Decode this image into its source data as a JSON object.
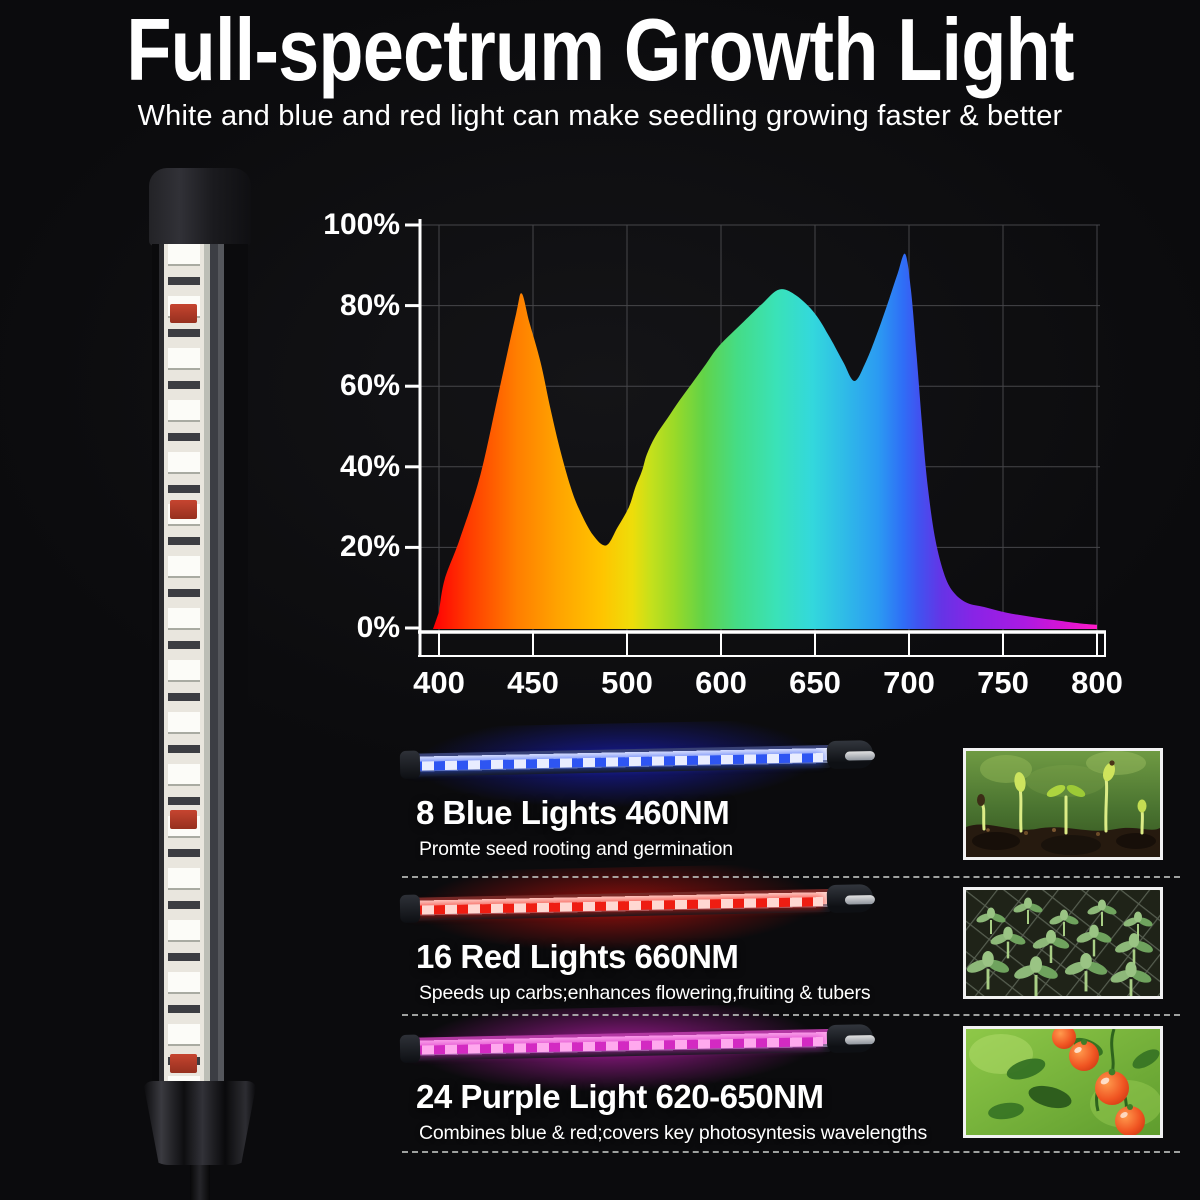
{
  "page": {
    "background_color": "#0b0b0d",
    "text_color": "#ffffff"
  },
  "header": {
    "title": "Full-spectrum Growth Light",
    "subtitle": "White and blue and red light can make seedling growing faster & better"
  },
  "chart_data": {
    "type": "area",
    "title": "",
    "xlabel": "",
    "ylabel": "",
    "x_tick_labels": [
      "400",
      "450",
      "500",
      "600",
      "650",
      "700",
      "750",
      "800"
    ],
    "y_tick_labels": [
      "100%",
      "80%",
      "60%",
      "40%",
      "20%",
      "0%"
    ],
    "ylim": [
      0,
      100
    ],
    "grid": true,
    "points": [
      [
        400,
        4
      ],
      [
        403,
        12
      ],
      [
        411,
        22
      ],
      [
        422,
        38
      ],
      [
        432,
        59
      ],
      [
        441,
        78
      ],
      [
        444,
        83
      ],
      [
        448,
        76
      ],
      [
        454,
        66
      ],
      [
        459,
        55
      ],
      [
        464,
        45
      ],
      [
        470,
        35
      ],
      [
        475,
        29
      ],
      [
        482,
        23
      ],
      [
        489,
        20.5
      ],
      [
        495,
        25
      ],
      [
        502,
        30
      ],
      [
        509,
        35
      ],
      [
        516,
        39
      ],
      [
        521,
        43
      ],
      [
        530,
        47.5
      ],
      [
        543,
        52
      ],
      [
        556,
        56.5
      ],
      [
        570,
        61
      ],
      [
        584,
        65.5
      ],
      [
        598,
        70
      ],
      [
        612,
        76
      ],
      [
        622,
        80.5
      ],
      [
        631,
        84
      ],
      [
        640,
        82.5
      ],
      [
        650,
        78
      ],
      [
        658,
        72
      ],
      [
        665,
        66
      ],
      [
        671,
        61.3
      ],
      [
        677,
        66
      ],
      [
        683,
        73
      ],
      [
        689,
        81
      ],
      [
        694,
        88
      ],
      [
        698,
        92.8
      ],
      [
        701,
        84
      ],
      [
        704,
        68
      ],
      [
        707,
        50
      ],
      [
        710,
        35
      ],
      [
        714,
        22
      ],
      [
        719,
        13
      ],
      [
        724,
        8.7
      ],
      [
        731,
        6.2
      ],
      [
        740,
        5.2
      ],
      [
        752,
        3.8
      ],
      [
        766,
        2.7
      ],
      [
        780,
        1.8
      ],
      [
        792,
        1.1
      ],
      [
        800,
        0.8
      ]
    ],
    "gradient_stops": [
      [
        0,
        "#ff0004"
      ],
      [
        0.056,
        "#ff3d00"
      ],
      [
        0.126,
        "#ff7e00"
      ],
      [
        0.188,
        "#ffa300"
      ],
      [
        0.254,
        "#ffc400"
      ],
      [
        0.3,
        "#eedd0a"
      ],
      [
        0.329,
        "#c4e01c"
      ],
      [
        0.366,
        "#97d929"
      ],
      [
        0.407,
        "#62d348"
      ],
      [
        0.457,
        "#45dc85"
      ],
      [
        0.517,
        "#3ae2b8"
      ],
      [
        0.571,
        "#33d8dc"
      ],
      [
        0.623,
        "#2fb9e8"
      ],
      [
        0.671,
        "#2b9af2"
      ],
      [
        0.708,
        "#2f6ef6"
      ],
      [
        0.731,
        "#4053f0"
      ],
      [
        0.766,
        "#6534e6"
      ],
      [
        0.814,
        "#8824e6"
      ],
      [
        0.891,
        "#ab1ae2"
      ],
      [
        0.949,
        "#d714d4"
      ],
      [
        1,
        "#ff1cc8"
      ]
    ]
  },
  "sections": [
    {
      "heading": "8 Blue Lights 460NM",
      "description": "Promte seed rooting and germination",
      "led_color": "#2e55f2",
      "strip_color": "#e9edff",
      "edge_color": "#39406e",
      "glow_color": "rgba(28,34,228,0.62)"
    },
    {
      "heading": "16 Red Lights 660NM",
      "description": "Speeds up carbs;enhances flowering,fruiting & tubers",
      "led_color": "#ee1d12",
      "strip_color": "#ffd8d2",
      "edge_color": "#6e2a28",
      "glow_color": "rgba(236,18,12,0.6)"
    },
    {
      "heading": "24 Purple Light 620-650NM",
      "description": "Combines blue & red;covers key photosyntesis wavelengths",
      "led_color": "#d32ac2",
      "strip_color": "#ffa9ee",
      "edge_color": "#b03aa0",
      "glow_color": "rgba(238,34,218,0.6)"
    }
  ],
  "photos": [
    {
      "name": "seedlings-sprouting-photo",
      "depicts": "seedlings sprouting from dark soil"
    },
    {
      "name": "seedling-tray-photo",
      "depicts": "tomato seedlings in nursery cell tray"
    },
    {
      "name": "cherry-tomatoes-photo",
      "depicts": "cherry tomatoes ripening on the vine"
    }
  ]
}
